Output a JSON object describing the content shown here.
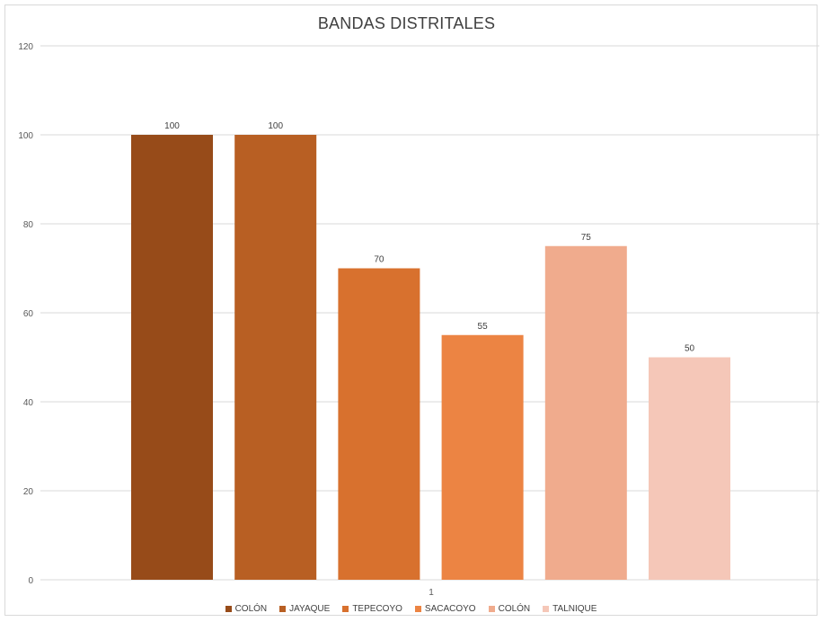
{
  "chart_data": {
    "type": "bar",
    "title": "BANDAS DISTRITALES",
    "categories": [
      "1"
    ],
    "series": [
      {
        "name": "COLÓN",
        "values": [
          100
        ],
        "color": "#974b19"
      },
      {
        "name": "JAYAQUE",
        "values": [
          100
        ],
        "color": "#b85f23"
      },
      {
        "name": "TEPECOYO",
        "values": [
          70
        ],
        "color": "#d8712e"
      },
      {
        "name": "SACACOYO",
        "values": [
          55
        ],
        "color": "#ec8443"
      },
      {
        "name": "COLÓN",
        "values": [
          75
        ],
        "color": "#f0ab8d"
      },
      {
        "name": "TALNIQUE",
        "values": [
          50
        ],
        "color": "#f5c7b8"
      }
    ],
    "ylim": [
      0,
      120
    ],
    "yticks": [
      0,
      20,
      40,
      60,
      80,
      100,
      120
    ],
    "grid": true,
    "legend": "bottom",
    "xlabel": "",
    "ylabel": ""
  }
}
